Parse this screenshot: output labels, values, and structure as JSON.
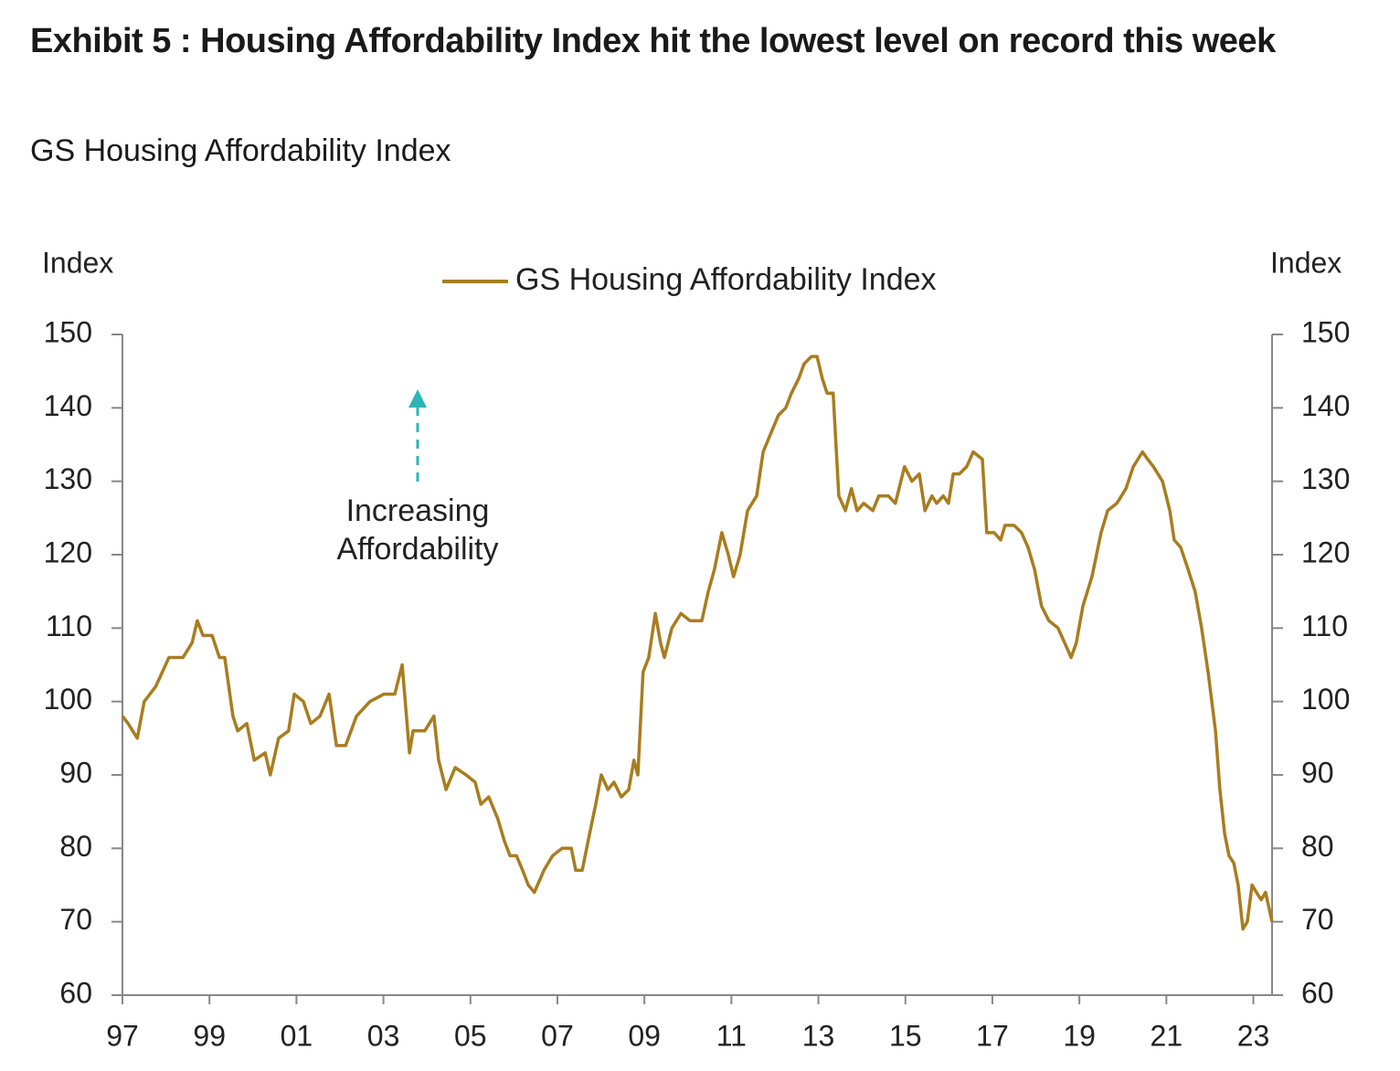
{
  "chart_data": {
    "type": "line",
    "title": "Exhibit 5 : Housing Affordability Index hit the lowest level on record this week",
    "subtitle": "GS Housing Affordability Index",
    "y_label": "Index",
    "y2_label": "Index",
    "annotation": {
      "lines": [
        "Increasing",
        "Affordability"
      ],
      "color": "#2bb5b8"
    },
    "xlim": [
      1997,
      2023.43
    ],
    "xticks": [
      {
        "value": 1997,
        "label": "97"
      },
      {
        "value": 1999,
        "label": "99"
      },
      {
        "value": 2001,
        "label": "01"
      },
      {
        "value": 2003,
        "label": "03"
      },
      {
        "value": 2005,
        "label": "05"
      },
      {
        "value": 2007,
        "label": "07"
      },
      {
        "value": 2009,
        "label": "09"
      },
      {
        "value": 2011,
        "label": "11"
      },
      {
        "value": 2013,
        "label": "13"
      },
      {
        "value": 2015,
        "label": "15"
      },
      {
        "value": 2017,
        "label": "17"
      },
      {
        "value": 2019,
        "label": "19"
      },
      {
        "value": 2021,
        "label": "21"
      },
      {
        "value": 2023,
        "label": "23"
      }
    ],
    "ylim": [
      60,
      150
    ],
    "yticks": [
      60,
      70,
      80,
      90,
      100,
      110,
      120,
      130,
      140,
      150
    ],
    "y2lim": [
      60,
      150
    ],
    "y2ticks": [
      60,
      70,
      80,
      90,
      100,
      110,
      120,
      130,
      140,
      150
    ],
    "grid": false,
    "legend": "top",
    "x": [
      1997.0,
      1997.13,
      1997.34,
      1997.5,
      1997.76,
      1998.07,
      1998.39,
      1998.6,
      1998.72,
      1998.85,
      1999.06,
      1999.23,
      1999.35,
      1999.54,
      1999.65,
      1999.86,
      2000.03,
      2000.28,
      2000.4,
      2000.59,
      2000.82,
      2000.95,
      2001.16,
      2001.33,
      2001.54,
      2001.75,
      2001.92,
      2002.13,
      2002.38,
      2002.69,
      2003.01,
      2003.26,
      2003.43,
      2003.6,
      2003.68,
      2003.95,
      2004.16,
      2004.27,
      2004.44,
      2004.65,
      2004.9,
      2005.11,
      2005.24,
      2005.42,
      2005.63,
      2005.78,
      2005.91,
      2006.06,
      2006.2,
      2006.33,
      2006.47,
      2006.69,
      2006.89,
      2007.11,
      2007.32,
      2007.42,
      2007.57,
      2007.74,
      2007.88,
      2008.01,
      2008.16,
      2008.3,
      2008.47,
      2008.64,
      2008.76,
      2008.85,
      2008.97,
      2009.1,
      2009.25,
      2009.37,
      2009.46,
      2009.63,
      2009.84,
      2010.05,
      2010.32,
      2010.47,
      2010.61,
      2010.78,
      2010.93,
      2011.05,
      2011.2,
      2011.37,
      2011.58,
      2011.73,
      2011.94,
      2012.08,
      2012.25,
      2012.38,
      2012.55,
      2012.67,
      2012.84,
      2012.97,
      2013.09,
      2013.2,
      2013.34,
      2013.47,
      2013.62,
      2013.76,
      2013.89,
      2014.04,
      2014.25,
      2014.39,
      2014.61,
      2014.77,
      2014.98,
      2015.15,
      2015.32,
      2015.45,
      2015.61,
      2015.72,
      2015.87,
      2015.99,
      2016.1,
      2016.24,
      2016.41,
      2016.56,
      2016.77,
      2016.87,
      2017.04,
      2017.19,
      2017.29,
      2017.5,
      2017.67,
      2017.82,
      2017.97,
      2018.13,
      2018.3,
      2018.51,
      2018.66,
      2018.81,
      2018.93,
      2019.08,
      2019.29,
      2019.5,
      2019.65,
      2019.86,
      2020.07,
      2020.24,
      2020.45,
      2020.57,
      2020.7,
      2020.91,
      2021.08,
      2021.18,
      2021.33,
      2021.5,
      2021.66,
      2021.81,
      2021.96,
      2022.13,
      2022.23,
      2022.34,
      2022.44,
      2022.55,
      2022.65,
      2022.76,
      2022.86,
      2022.97,
      2023.07,
      2023.18,
      2023.28,
      2023.43
    ],
    "series": [
      {
        "name": "GS Housing Affordability Index",
        "color": "#a97c1e",
        "values": [
          98,
          97,
          95,
          100,
          102,
          106,
          106,
          108,
          111,
          109,
          109,
          106,
          106,
          98,
          96,
          97,
          92,
          93,
          90,
          95,
          96,
          101,
          100,
          97,
          98,
          101,
          94,
          94,
          98,
          100,
          101,
          101,
          105,
          93,
          96,
          96,
          98,
          92,
          88,
          91,
          90,
          89,
          86,
          87,
          84,
          81,
          79,
          79,
          77,
          75,
          74,
          77,
          79,
          80,
          80,
          77,
          77,
          82,
          86,
          90,
          88,
          89,
          87,
          88,
          92,
          90,
          104,
          106,
          112,
          108,
          106,
          110,
          112,
          111,
          111,
          115,
          118,
          123,
          120,
          117,
          120,
          126,
          128,
          134,
          137,
          139,
          140,
          142,
          144,
          146,
          147,
          147,
          144,
          142,
          142,
          128,
          126,
          129,
          126,
          127,
          126,
          128,
          128,
          127,
          132,
          130,
          131,
          126,
          128,
          127,
          128,
          127,
          131,
          131,
          132,
          134,
          133,
          123,
          123,
          122,
          124,
          124,
          123,
          121,
          118,
          113,
          111,
          110,
          108,
          106,
          108,
          113,
          117,
          123,
          126,
          127,
          129,
          132,
          134,
          133,
          132,
          130,
          126,
          122,
          121,
          118,
          115,
          110,
          104,
          96,
          88,
          82,
          79,
          78,
          75,
          69,
          70,
          75,
          74,
          73,
          74,
          70
        ]
      }
    ]
  }
}
